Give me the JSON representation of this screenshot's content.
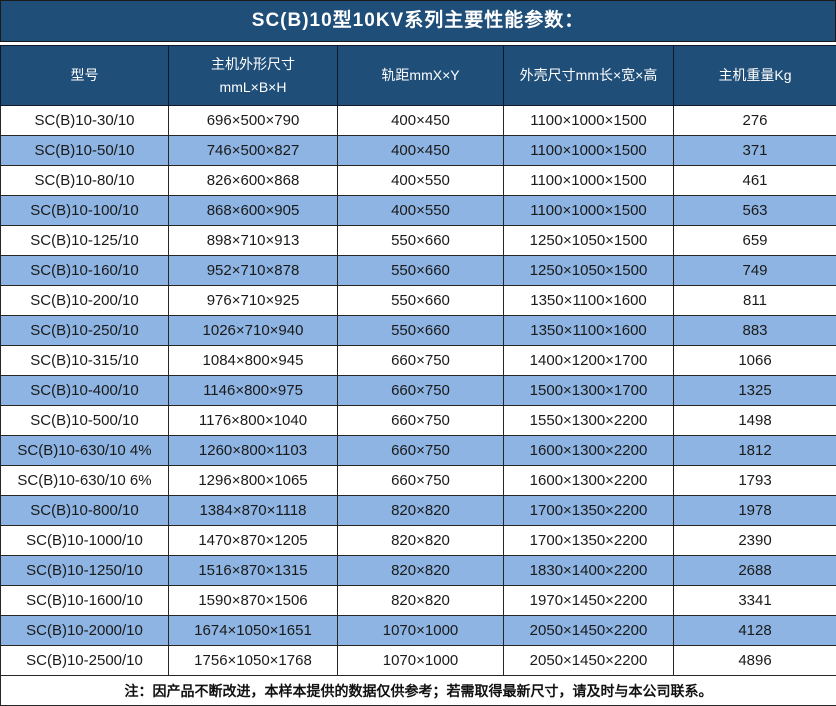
{
  "title": "SC(B)10型10KV系列主要性能参数：",
  "colors": {
    "header_bg": "#1F4E79",
    "row_alt_bg": "#8DB4E2",
    "row_bg": "#FFFFFF",
    "border": "#262626",
    "header_text": "#FFFFFF",
    "body_text": "#1A1A1A"
  },
  "columns": [
    "型号",
    "主机外形尺寸\nmmL×B×H",
    "轨距mmX×Y",
    "外壳尺寸mm长×宽×高",
    "主机重量Kg"
  ],
  "rows": [
    [
      "SC(B)10-30/10",
      "696×500×790",
      "400×450",
      "1100×1000×1500",
      "276"
    ],
    [
      "SC(B)10-50/10",
      "746×500×827",
      "400×450",
      "1100×1000×1500",
      "371"
    ],
    [
      "SC(B)10-80/10",
      "826×600×868",
      "400×550",
      "1100×1000×1500",
      "461"
    ],
    [
      "SC(B)10-100/10",
      "868×600×905",
      "400×550",
      "1100×1000×1500",
      "563"
    ],
    [
      "SC(B)10-125/10",
      "898×710×913",
      "550×660",
      "1250×1050×1500",
      "659"
    ],
    [
      "SC(B)10-160/10",
      "952×710×878",
      "550×660",
      "1250×1050×1500",
      "749"
    ],
    [
      "SC(B)10-200/10",
      "976×710×925",
      "550×660",
      "1350×1100×1600",
      "811"
    ],
    [
      "SC(B)10-250/10",
      "1026×710×940",
      "550×660",
      "1350×1100×1600",
      "883"
    ],
    [
      "SC(B)10-315/10",
      "1084×800×945",
      "660×750",
      "1400×1200×1700",
      "1066"
    ],
    [
      "SC(B)10-400/10",
      "1146×800×975",
      "660×750",
      "1500×1300×1700",
      "1325"
    ],
    [
      "SC(B)10-500/10",
      "1176×800×1040",
      "660×750",
      "1550×1300×2200",
      "1498"
    ],
    [
      "SC(B)10-630/10 4%",
      "1260×800×1103",
      "660×750",
      "1600×1300×2200",
      "1812"
    ],
    [
      "SC(B)10-630/10 6%",
      "1296×800×1065",
      "660×750",
      "1600×1300×2200",
      "1793"
    ],
    [
      "SC(B)10-800/10",
      "1384×870×1118",
      "820×820",
      "1700×1350×2200",
      "1978"
    ],
    [
      "SC(B)10-1000/10",
      "1470×870×1205",
      "820×820",
      "1700×1350×2200",
      "2390"
    ],
    [
      "SC(B)10-1250/10",
      "1516×870×1315",
      "820×820",
      "1830×1400×2200",
      "2688"
    ],
    [
      "SC(B)10-1600/10",
      "1590×870×1506",
      "820×820",
      "1970×1450×2200",
      "3341"
    ],
    [
      "SC(B)10-2000/10",
      "1674×1050×1651",
      "1070×1000",
      "2050×1450×2200",
      "4128"
    ],
    [
      "SC(B)10-2500/10",
      "1756×1050×1768",
      "1070×1000",
      "2050×1450×2200",
      "4896"
    ]
  ],
  "note": "注：因产品不断改进，本样本提供的数据仅供参考；若需取得最新尺寸，请及时与本公司联系。"
}
